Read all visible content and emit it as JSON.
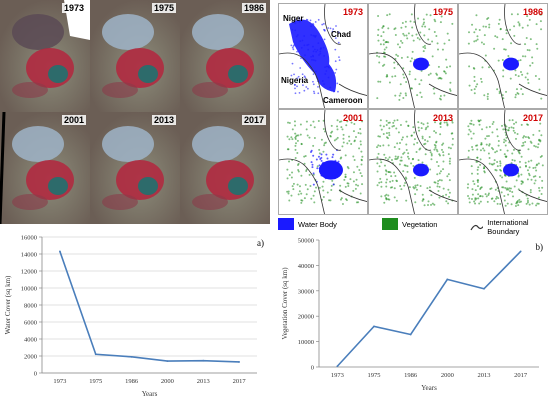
{
  "satellite_panel": {
    "years": [
      "1973",
      "1975",
      "1986",
      "2001",
      "2013",
      "2017"
    ]
  },
  "map_panel": {
    "years": [
      "1973",
      "1975",
      "1986",
      "2001",
      "2013",
      "2017"
    ],
    "countries": {
      "niger": "Niger",
      "chad": "Chad",
      "nigeria": "Nigeria",
      "cameroon": "Cameroon"
    },
    "colors": {
      "water": "#1a1aff",
      "vegetation": "#1e8c1e",
      "boundary": "#333333"
    }
  },
  "legend": {
    "water": "Water Body",
    "vegetation": "Vegetation",
    "boundary": "International Boundary"
  },
  "chart_data": [
    {
      "type": "line",
      "panel_label": "a)",
      "categories": [
        "1973",
        "1975",
        "1986",
        "2000",
        "2013",
        "2017"
      ],
      "series": [
        {
          "values": [
            14300,
            2200,
            1900,
            1400,
            1450,
            1300
          ]
        }
      ],
      "xlabel": "Years",
      "ylabel": "Water Cover (sq km)",
      "ylim": [
        0,
        16000
      ],
      "yticks": [
        "0",
        "2000",
        "4000",
        "6000",
        "8000",
        "10000",
        "12000",
        "14000",
        "16000"
      ],
      "grid": true,
      "line_color": "#4a7ebb"
    },
    {
      "type": "line",
      "panel_label": "b)",
      "categories": [
        "1973",
        "1975",
        "1986",
        "2000",
        "2013",
        "2017"
      ],
      "series": [
        {
          "values": [
            300,
            16000,
            12800,
            34500,
            30800,
            45500
          ]
        }
      ],
      "xlabel": "Years",
      "ylabel": "Vegetation Cover (sq km)",
      "ylim": [
        0,
        50000
      ],
      "yticks": [
        "0",
        "10000",
        "20000",
        "30000",
        "40000",
        "50000"
      ],
      "grid": false,
      "line_color": "#4a7ebb"
    }
  ]
}
